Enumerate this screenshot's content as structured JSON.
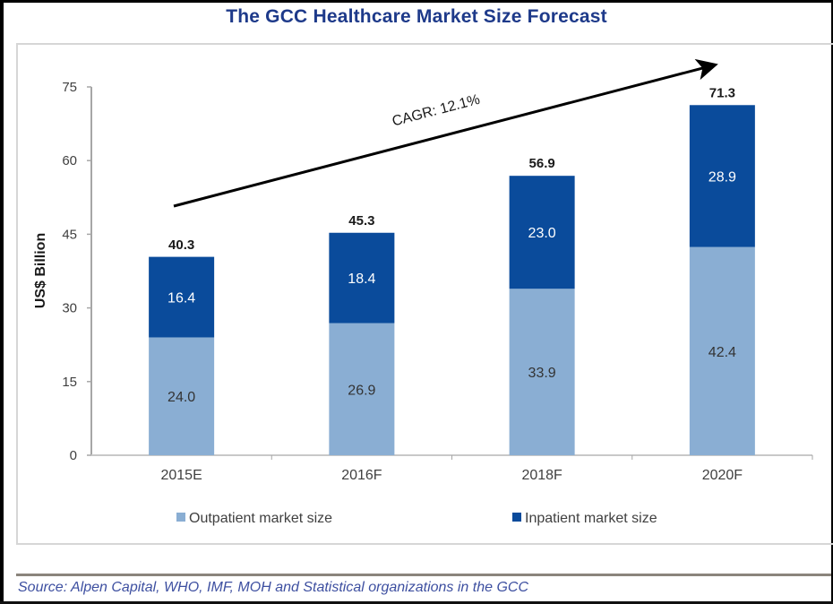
{
  "chart_data": {
    "type": "bar",
    "stacked": true,
    "title": "The GCC Healthcare Market Size Forecast",
    "xlabel": "",
    "ylabel": "US$ Billion",
    "ylim": [
      0,
      75
    ],
    "yticks": [
      0,
      15,
      30,
      45,
      60,
      75
    ],
    "categories": [
      "2015E",
      "2016F",
      "2018F",
      "2020F"
    ],
    "series": [
      {
        "name": "Outpatient market size",
        "color": "#8aaed3",
        "values": [
          24.0,
          26.9,
          33.9,
          42.4
        ]
      },
      {
        "name": "Inpatient market size",
        "color": "#0a4b9b",
        "values": [
          16.4,
          18.4,
          23.0,
          28.9
        ]
      }
    ],
    "totals": [
      40.3,
      45.3,
      56.9,
      71.3
    ],
    "value_labels": {
      "outpatient": [
        "24.0",
        "26.9",
        "33.9",
        "42.4"
      ],
      "inpatient": [
        "16.4",
        "18.4",
        "23.0",
        "28.9"
      ],
      "totals": [
        "40.3",
        "45.3",
        "56.9",
        "71.3"
      ]
    },
    "annotation": {
      "text": "CAGR: 12.1%",
      "type": "trend-arrow"
    },
    "legend": {
      "placement": "bottom"
    },
    "grid": false
  },
  "source": "Source:  Alpen Capital, WHO, IMF, MOH and Statistical organizations in the GCC"
}
